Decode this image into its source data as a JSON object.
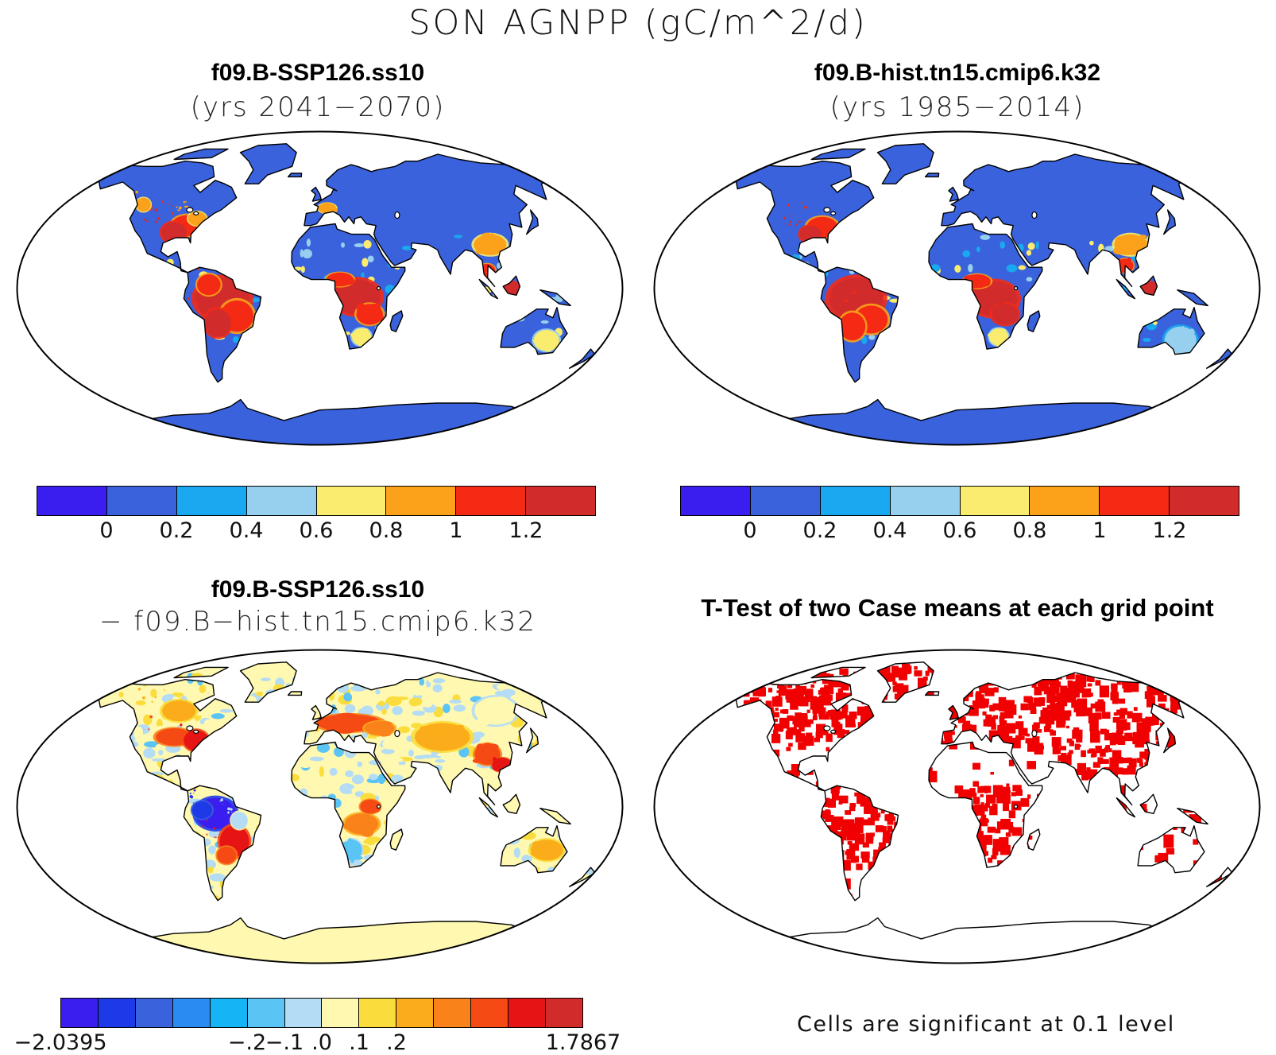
{
  "figure": {
    "title": "SON AGNPP (gC/m^2/d)"
  },
  "colors": {
    "abs_scale": [
      "#3a1ef0",
      "#3a62dc",
      "#1aa8f0",
      "#96d0ee",
      "#faec6e",
      "#fba21a",
      "#f52a14",
      "#d22b2b"
    ],
    "diff_scale": [
      "#3a1ef0",
      "#1e3ae8",
      "#3a62dc",
      "#2a8cf0",
      "#14b4f5",
      "#5ac4f5",
      "#b4dcf5",
      "#fff8b0",
      "#fadc3c",
      "#fbac1a",
      "#fa821a",
      "#f54a14",
      "#e61414",
      "#d22b2b"
    ],
    "sig": "#f00000",
    "ocean": "#ffffff"
  },
  "panels": [
    {
      "id": "case1",
      "title": "f09.B-SSP126.ss10",
      "subtitle": "(yrs 2041−2070)",
      "colorbar_ticks": [
        "0",
        "0.2",
        "0.4",
        "0.6",
        "0.8",
        "1",
        "1.2"
      ]
    },
    {
      "id": "case2",
      "title": "f09.B-hist.tn15.cmip6.k32",
      "subtitle": "(yrs 1985−2014)",
      "colorbar_ticks": [
        "0",
        "0.2",
        "0.4",
        "0.6",
        "0.8",
        "1",
        "1.2"
      ]
    },
    {
      "id": "difference",
      "title": "f09.B-SSP126.ss10",
      "subtitle": "− f09.B−hist.tn15.cmip6.k32",
      "colorbar_ticks": [
        "−2.0395",
        "−.2",
        "−.1",
        ".0",
        ".1",
        ".2",
        "1.7867"
      ]
    },
    {
      "id": "ttest",
      "title": "T-Test of two Case means at each grid point",
      "note": "Cells are significant at 0.1 level"
    }
  ]
}
